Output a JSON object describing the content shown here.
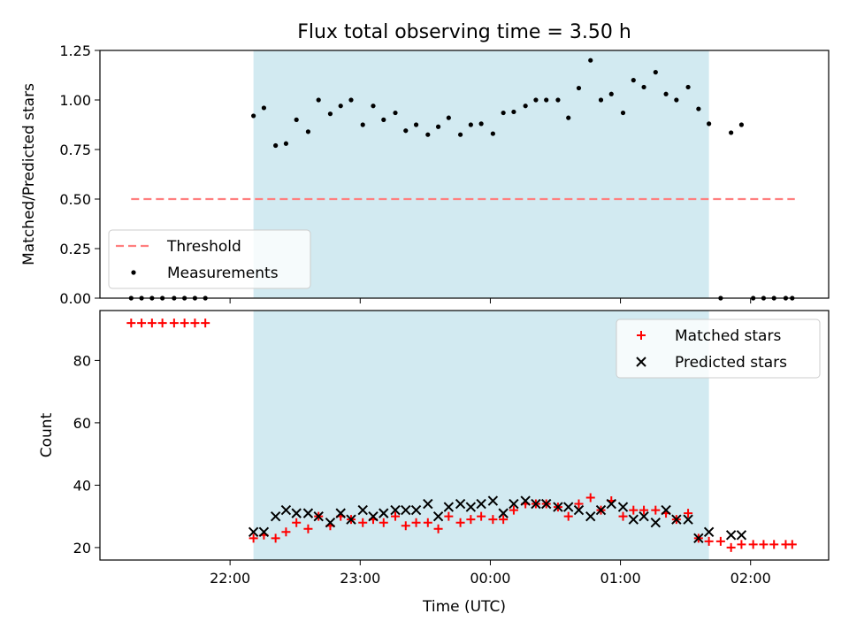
{
  "chart_data": {
    "type": "scatter",
    "title": "Flux total observing time = 3.50 h",
    "xlabel": "Time (UTC)",
    "x_unit": "hours",
    "x_ticks": [
      {
        "value": 22,
        "label": "22:00"
      },
      {
        "value": 23,
        "label": "23:00"
      },
      {
        "value": 24,
        "label": "00:00"
      },
      {
        "value": 25,
        "label": "01:00"
      },
      {
        "value": 26,
        "label": "02:00"
      }
    ],
    "xlim": [
      21.0,
      26.6
    ],
    "observing_window": {
      "start": 22.18,
      "end": 25.68,
      "color": "#add8e6"
    },
    "panels": [
      {
        "ylabel": "Matched/Predicted stars",
        "ylim": [
          0,
          1.25
        ],
        "y_ticks": [
          "0.00",
          "0.25",
          "0.50",
          "0.75",
          "1.00",
          "1.25"
        ],
        "legend_position": "lower-left",
        "series": [
          {
            "name": "Threshold",
            "kind": "dashed-line",
            "color": "#ff7f7f",
            "x": [
              21.24,
              26.34
            ],
            "y": [
              0.5,
              0.5
            ]
          },
          {
            "name": "Measurements",
            "kind": "dots",
            "color": "#000000",
            "x": [
              21.24,
              21.32,
              21.4,
              21.48,
              21.57,
              21.65,
              21.73,
              21.81,
              22.18,
              22.26,
              22.35,
              22.43,
              22.51,
              22.6,
              22.68,
              22.77,
              22.85,
              22.93,
              23.02,
              23.1,
              23.18,
              23.27,
              23.35,
              23.43,
              23.52,
              23.6,
              23.68,
              23.77,
              23.85,
              23.93,
              24.02,
              24.1,
              24.18,
              24.27,
              24.35,
              24.43,
              24.52,
              24.6,
              24.68,
              24.77,
              24.85,
              24.93,
              25.02,
              25.1,
              25.18,
              25.27,
              25.35,
              25.43,
              25.52,
              25.6,
              25.68,
              25.77,
              25.85,
              25.93,
              26.02,
              26.1,
              26.18,
              26.27,
              26.32
            ],
            "y": [
              0,
              0,
              0,
              0,
              0,
              0,
              0,
              0,
              0.92,
              0.96,
              0.77,
              0.78,
              0.9,
              0.84,
              1.0,
              0.93,
              0.97,
              1.0,
              0.875,
              0.97,
              0.9,
              0.935,
              0.845,
              0.875,
              0.825,
              0.865,
              0.91,
              0.825,
              0.875,
              0.88,
              0.83,
              0.935,
              0.94,
              0.97,
              1.0,
              1.0,
              1.0,
              0.91,
              1.06,
              1.2,
              1.0,
              1.03,
              0.935,
              1.1,
              1.065,
              1.14,
              1.03,
              1.0,
              1.065,
              0.955,
              0.88,
              0,
              0.835,
              0.875,
              0,
              0,
              0,
              0,
              0
            ]
          }
        ]
      },
      {
        "ylabel": "Count",
        "ylim": [
          16,
          96
        ],
        "y_ticks": [
          "20",
          "40",
          "60",
          "80"
        ],
        "legend_position": "upper-right",
        "series": [
          {
            "name": "Matched stars",
            "marker": "+",
            "color": "#ff0000",
            "x": [
              21.24,
              21.32,
              21.4,
              21.48,
              21.57,
              21.65,
              21.73,
              21.81,
              22.18,
              22.26,
              22.35,
              22.43,
              22.51,
              22.6,
              22.68,
              22.77,
              22.85,
              22.93,
              23.02,
              23.1,
              23.18,
              23.27,
              23.35,
              23.43,
              23.52,
              23.6,
              23.68,
              23.77,
              23.85,
              23.93,
              24.02,
              24.1,
              24.18,
              24.27,
              24.35,
              24.43,
              24.52,
              24.6,
              24.68,
              24.77,
              24.85,
              24.93,
              25.02,
              25.1,
              25.18,
              25.27,
              25.35,
              25.43,
              25.52,
              25.6,
              25.68,
              25.77,
              25.85,
              25.93,
              26.02,
              26.1,
              26.18,
              26.27,
              26.32
            ],
            "y": [
              92,
              92,
              92,
              92,
              92,
              92,
              92,
              92,
              23,
              24,
              23,
              25,
              28,
              26,
              30,
              27,
              30,
              29,
              28,
              29,
              28,
              30,
              27,
              28,
              28,
              26,
              30,
              28,
              29,
              30,
              29,
              29,
              32,
              34,
              34,
              34,
              33,
              30,
              34,
              36,
              32,
              35,
              30,
              32,
              32,
              32,
              31,
              29,
              31,
              23,
              22,
              22,
              20,
              21,
              21,
              21,
              21,
              21,
              21
            ]
          },
          {
            "name": "Predicted stars",
            "marker": "x",
            "color": "#000000",
            "x": [
              22.18,
              22.26,
              22.35,
              22.43,
              22.51,
              22.6,
              22.68,
              22.77,
              22.85,
              22.93,
              23.02,
              23.1,
              23.18,
              23.27,
              23.35,
              23.43,
              23.52,
              23.6,
              23.68,
              23.77,
              23.85,
              23.93,
              24.02,
              24.1,
              24.18,
              24.27,
              24.35,
              24.43,
              24.52,
              24.6,
              24.68,
              24.77,
              24.85,
              24.93,
              25.02,
              25.1,
              25.18,
              25.27,
              25.35,
              25.43,
              25.52,
              25.6,
              25.68,
              25.85,
              25.93
            ],
            "y": [
              25,
              25,
              30,
              32,
              31,
              31,
              30,
              28,
              31,
              29,
              32,
              30,
              31,
              32,
              32,
              32,
              34,
              30,
              33,
              34,
              33,
              34,
              35,
              31,
              34,
              35,
              34,
              34,
              33,
              33,
              32,
              30,
              32,
              34,
              33,
              29,
              30,
              28,
              32,
              29,
              29,
              23,
              25,
              24,
              24
            ]
          }
        ]
      }
    ]
  }
}
